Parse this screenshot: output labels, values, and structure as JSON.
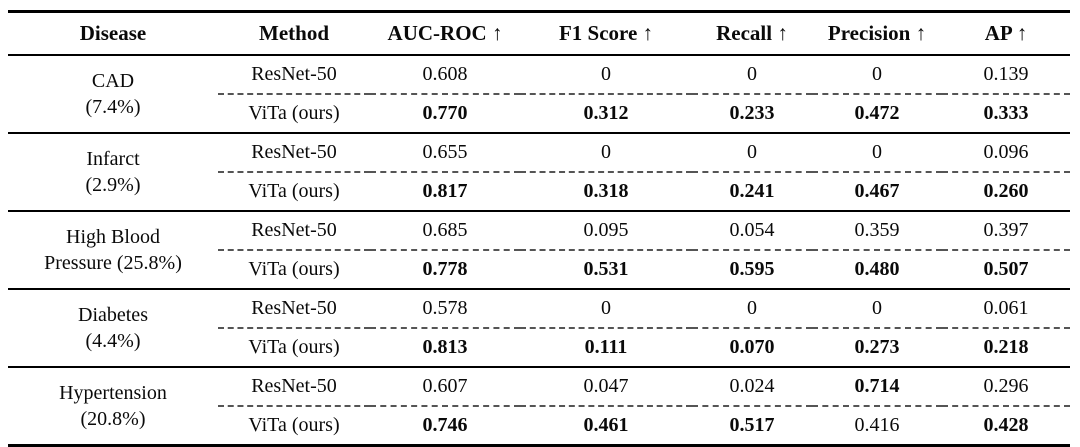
{
  "table": {
    "columns": [
      {
        "label": "Disease",
        "arrow": ""
      },
      {
        "label": "Method",
        "arrow": ""
      },
      {
        "label": "AUC-ROC",
        "arrow": "↑"
      },
      {
        "label": "F1 Score",
        "arrow": "↑"
      },
      {
        "label": "Recall",
        "arrow": "↑"
      },
      {
        "label": "Precision",
        "arrow": "↑"
      },
      {
        "label": "AP",
        "arrow": "↑"
      }
    ],
    "groups": [
      {
        "disease_line1": "CAD",
        "disease_line2": "(7.4%)",
        "rows": [
          {
            "method": "ResNet-50",
            "values": [
              "0.608",
              "0",
              "0",
              "0",
              "0.139"
            ],
            "bold": [
              false,
              false,
              false,
              false,
              false
            ]
          },
          {
            "method": "ViTa (ours)",
            "values": [
              "0.770",
              "0.312",
              "0.233",
              "0.472",
              "0.333"
            ],
            "bold": [
              true,
              true,
              true,
              true,
              true
            ]
          }
        ]
      },
      {
        "disease_line1": "Infarct",
        "disease_line2": "(2.9%)",
        "rows": [
          {
            "method": "ResNet-50",
            "values": [
              "0.655",
              "0",
              "0",
              "0",
              "0.096"
            ],
            "bold": [
              false,
              false,
              false,
              false,
              false
            ]
          },
          {
            "method": "ViTa (ours)",
            "values": [
              "0.817",
              "0.318",
              "0.241",
              "0.467",
              "0.260"
            ],
            "bold": [
              true,
              true,
              true,
              true,
              true
            ]
          }
        ]
      },
      {
        "disease_line1": "High Blood",
        "disease_line2": "Pressure (25.8%)",
        "rows": [
          {
            "method": "ResNet-50",
            "values": [
              "0.685",
              "0.095",
              "0.054",
              "0.359",
              "0.397"
            ],
            "bold": [
              false,
              false,
              false,
              false,
              false
            ]
          },
          {
            "method": "ViTa (ours)",
            "values": [
              "0.778",
              "0.531",
              "0.595",
              "0.480",
              "0.507"
            ],
            "bold": [
              true,
              true,
              true,
              true,
              true
            ]
          }
        ]
      },
      {
        "disease_line1": "Diabetes",
        "disease_line2": "(4.4%)",
        "rows": [
          {
            "method": "ResNet-50",
            "values": [
              "0.578",
              "0",
              "0",
              "0",
              "0.061"
            ],
            "bold": [
              false,
              false,
              false,
              false,
              false
            ]
          },
          {
            "method": "ViTa (ours)",
            "values": [
              "0.813",
              "0.111",
              "0.070",
              "0.273",
              "0.218"
            ],
            "bold": [
              true,
              true,
              true,
              true,
              true
            ]
          }
        ]
      },
      {
        "disease_line1": "Hypertension",
        "disease_line2": "(20.8%)",
        "rows": [
          {
            "method": "ResNet-50",
            "values": [
              "0.607",
              "0.047",
              "0.024",
              "0.714",
              "0.296"
            ],
            "bold": [
              false,
              false,
              false,
              true,
              false
            ]
          },
          {
            "method": "ViTa (ours)",
            "values": [
              "0.746",
              "0.461",
              "0.517",
              "0.416",
              "0.428"
            ],
            "bold": [
              true,
              true,
              true,
              false,
              true
            ]
          }
        ]
      }
    ]
  },
  "colors": {
    "background": "#ffffff",
    "text": "#0a0a0a",
    "solid_rule": "#000000",
    "dashed_rule": "#555555"
  }
}
